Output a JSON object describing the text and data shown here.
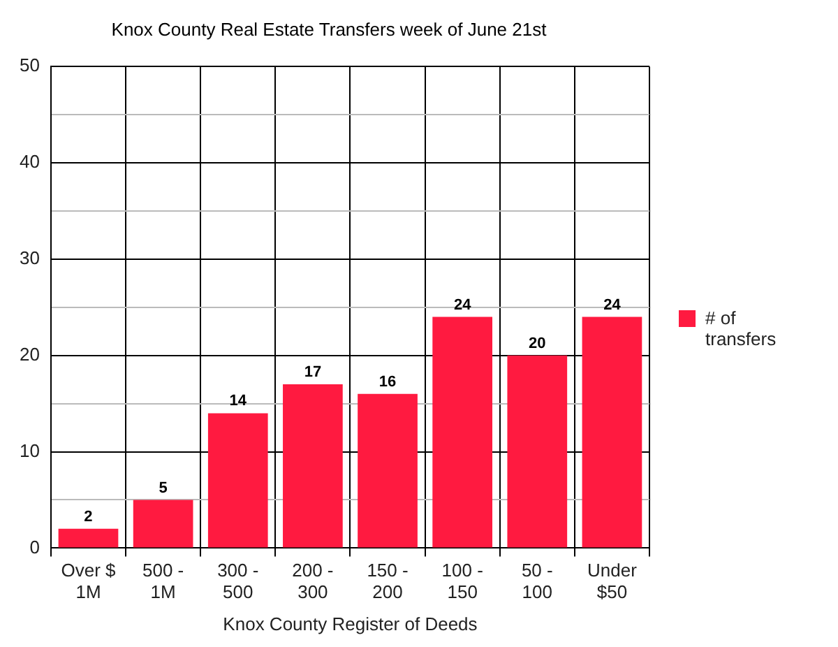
{
  "chart_data": {
    "type": "bar",
    "title": "Knox County Real Estate Transfers week of June 21st",
    "xlabel": "Knox County Register of Deeds",
    "categories": [
      "Over $ 1M",
      "500 - 1M",
      "300 - 500",
      "200 - 300",
      "150 - 200",
      "100 - 150",
      "50 - 100",
      "Under $50"
    ],
    "series": [
      {
        "name": "# of transfers",
        "color": "#ff1a40",
        "values": [
          2,
          5,
          14,
          17,
          16,
          24,
          20,
          24
        ]
      }
    ],
    "ylim": [
      0,
      50
    ],
    "yticks": [
      0,
      {
        "value": 5,
        "label": null
      },
      10,
      {
        "value": 15,
        "label": null
      },
      20,
      {
        "value": 25,
        "label": null
      },
      30,
      {
        "value": 35,
        "label": null
      },
      40,
      {
        "value": 45,
        "label": null
      },
      50
    ],
    "grid": true,
    "legend": "right",
    "data_labels": true
  }
}
